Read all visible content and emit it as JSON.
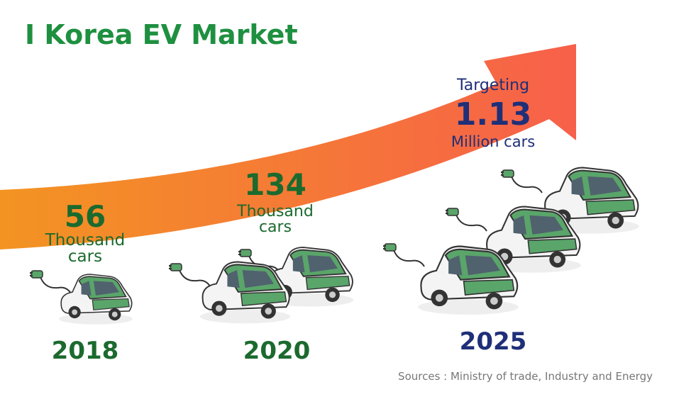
{
  "title": "I Korea EV Market",
  "milestones": [
    {
      "year": "2018",
      "value": "56",
      "unit": "Thousand cars"
    },
    {
      "year": "2020",
      "value": "134",
      "unit": "Thousand cars"
    },
    {
      "year": "2025",
      "prefix": "Targeting",
      "value": "1.13",
      "unit": "Million cars"
    }
  ],
  "source": "Sources : Ministry of trade, Industry and Energy"
}
